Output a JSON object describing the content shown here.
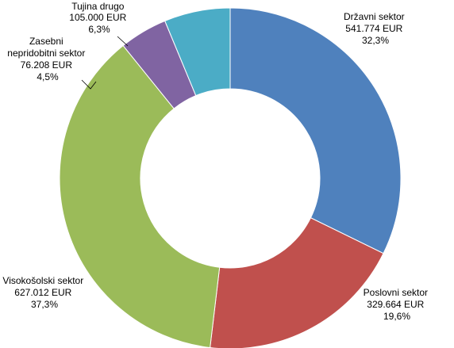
{
  "chart_data": {
    "type": "pie",
    "variant": "donut",
    "slices": [
      {
        "name": "Državni sektor",
        "value": 541774,
        "value_label": "541.774 EUR",
        "percent_label": "32,3%",
        "color": "#4F81BD"
      },
      {
        "name": "Poslovni sektor",
        "value": 329664,
        "value_label": "329.664 EUR",
        "percent_label": "19,6%",
        "color": "#C0504D"
      },
      {
        "name": "Visokošolski sektor",
        "value": 627012,
        "value_label": "627.012 EUR",
        "percent_label": "37,3%",
        "color": "#9BBB59"
      },
      {
        "name": "Zasebni nepridobitni sektor",
        "value": 76208,
        "value_label": "76.208 EUR",
        "percent_label": "4,5%",
        "color": "#8064A2"
      },
      {
        "name": "Tujina drugo",
        "value": 105000,
        "value_label": "105.000 EUR",
        "percent_label": "6,3%",
        "color": "#4BACC6"
      }
    ]
  }
}
